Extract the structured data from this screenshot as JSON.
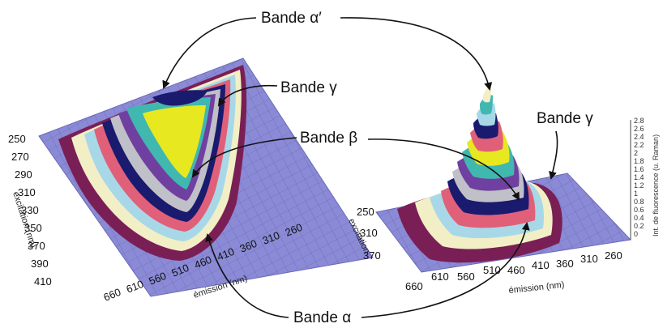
{
  "labels": {
    "alpha_prime": "Bande α′",
    "gamma_left": "Bande γ",
    "beta": "Bande β",
    "gamma_right": "Bande γ",
    "alpha": "Bande α"
  },
  "left_plot": {
    "y_ticks": [
      "250",
      "270",
      "290",
      "310",
      "330",
      "350",
      "370",
      "390",
      "410"
    ],
    "y_label": "excitation (nm)",
    "x_ticks": [
      "660",
      "610",
      "560",
      "510",
      "460",
      "410",
      "360",
      "310",
      "260"
    ],
    "x_label": "émission (nm)"
  },
  "right_plot": {
    "y_ticks": [
      "250",
      "310",
      "370"
    ],
    "y_label": "excitation",
    "x_ticks": [
      "660",
      "610",
      "560",
      "510",
      "460",
      "410",
      "360",
      "310",
      "260"
    ],
    "x_label": "émission (nm)",
    "z_ticks": [
      "2.8",
      "2.6",
      "2.4",
      "2.2",
      "2",
      "1.8",
      "1.6",
      "1.4",
      "1.2",
      "1",
      "0.8",
      "0.6",
      "0.4",
      "0.2",
      "0"
    ],
    "z_label": "Int. de fluorescence (u. Raman)"
  },
  "colors": {
    "base": "#8a8ad6",
    "maroon": "#7a1f55",
    "cream": "#f2efc6",
    "lightblue": "#a8d8e8",
    "pink": "#e0607a",
    "navy": "#1a1a6e",
    "yellow": "#e8e820",
    "teal": "#40b8b0",
    "purple": "#7040a0",
    "grey": "#c0c0c8"
  }
}
